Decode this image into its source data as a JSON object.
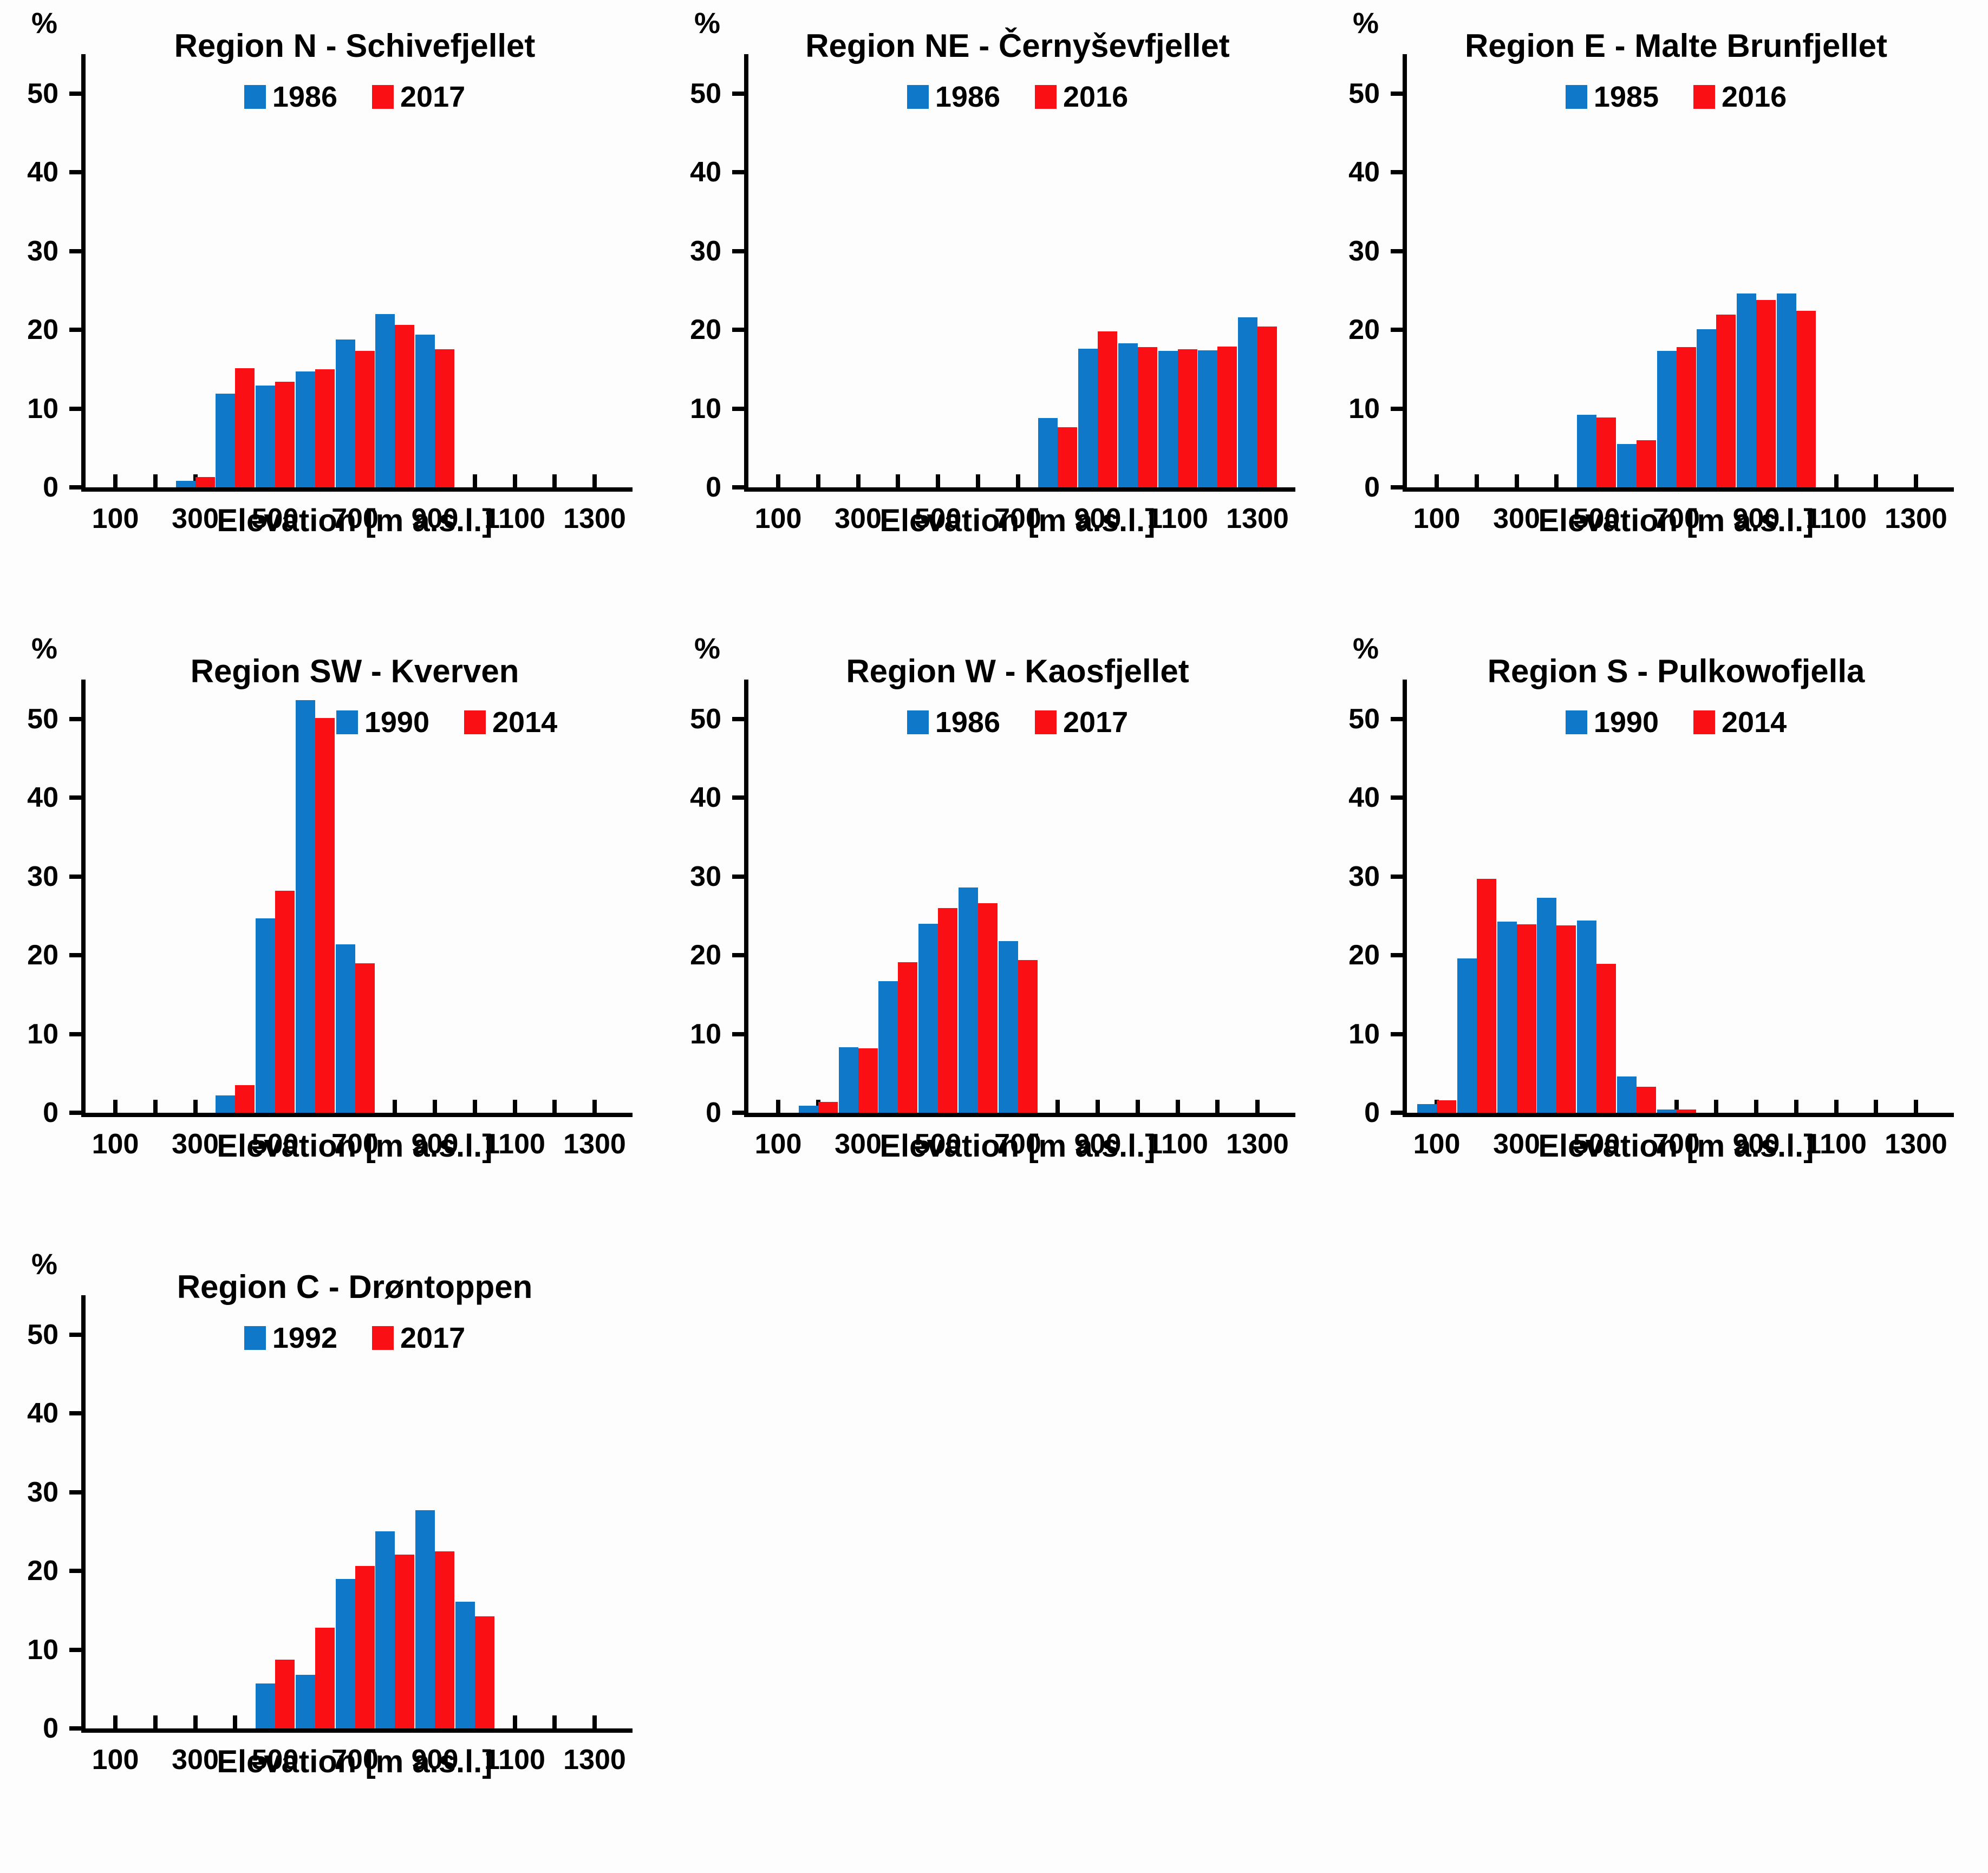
{
  "figure": {
    "description_unit": "%"
  },
  "colors": {
    "series1_blue": "#1078C8",
    "series2_red": "#FA1014",
    "axis": "#000000",
    "background": "#FDFDFE"
  },
  "y_axis": {
    "unit": "%",
    "ticks": [
      0,
      10,
      20,
      30,
      40,
      50
    ],
    "max": 55
  },
  "x_axis": {
    "label": "Elevation [m a.s.l.]",
    "tick_labels": [
      100,
      300,
      500,
      700,
      900,
      1100,
      1300
    ],
    "minor_tick_step": 100,
    "range": [
      100,
      1300
    ]
  },
  "chart_data": [
    {
      "type": "bar",
      "title": "Region N - Schivefjellet",
      "xlabel": "Elevation [m a.s.l.]",
      "ylabel": "%",
      "ylim": [
        0,
        55
      ],
      "legend_position": "top-center",
      "x": [
        300,
        400,
        500,
        600,
        700,
        800,
        900
      ],
      "series": [
        {
          "name": "1986",
          "values": [
            0.8,
            11.9,
            12.9,
            14.7,
            18.8,
            22.0,
            19.4
          ]
        },
        {
          "name": "2017",
          "values": [
            1.3,
            15.1,
            13.4,
            15.0,
            17.3,
            20.6,
            17.5
          ]
        }
      ]
    },
    {
      "type": "bar",
      "title": "Region NE - Černyševfjellet",
      "xlabel": "Elevation [m a.s.l.]",
      "ylabel": "%",
      "ylim": [
        0,
        55
      ],
      "legend_position": "top-center",
      "x": [
        800,
        900,
        1000,
        1100,
        1200,
        1300
      ],
      "series": [
        {
          "name": "1986",
          "values": [
            8.8,
            17.6,
            18.3,
            17.3,
            17.4,
            21.6
          ]
        },
        {
          "name": "2016",
          "values": [
            7.6,
            19.8,
            17.8,
            17.5,
            17.9,
            20.4
          ]
        }
      ]
    },
    {
      "type": "bar",
      "title": "Region E - Malte Brunfjellet",
      "xlabel": "Elevation [m a.s.l.]",
      "ylabel": "%",
      "ylim": [
        0,
        55
      ],
      "legend_position": "top-center",
      "x": [
        500,
        600,
        700,
        800,
        900,
        1000
      ],
      "series": [
        {
          "name": "1985",
          "values": [
            9.2,
            5.5,
            17.3,
            20.1,
            24.6,
            24.6
          ]
        },
        {
          "name": "2016",
          "values": [
            8.9,
            6.0,
            17.8,
            21.9,
            23.8,
            22.4
          ]
        }
      ]
    },
    {
      "type": "bar",
      "title": "Region SW - Kverven",
      "xlabel": "Elevation [m a.s.l.]",
      "ylabel": "%",
      "ylim": [
        0,
        55
      ],
      "legend_position": "top-right",
      "legend_shift": 170,
      "x": [
        400,
        500,
        600,
        700
      ],
      "series": [
        {
          "name": "1990",
          "values": [
            2.2,
            24.7,
            52.4,
            21.4
          ]
        },
        {
          "name": "2014",
          "values": [
            3.5,
            28.2,
            50.1,
            19.0
          ]
        }
      ]
    },
    {
      "type": "bar",
      "title": "Region W - Kaosfjellet",
      "xlabel": "Elevation [m a.s.l.]",
      "ylabel": "%",
      "ylim": [
        0,
        55
      ],
      "legend_position": "top-center",
      "x": [
        200,
        300,
        400,
        500,
        600,
        700
      ],
      "series": [
        {
          "name": "1986",
          "values": [
            0.9,
            8.3,
            16.7,
            24.0,
            28.6,
            21.8
          ]
        },
        {
          "name": "2017",
          "values": [
            1.4,
            8.2,
            19.1,
            26.0,
            26.6,
            19.4
          ]
        }
      ]
    },
    {
      "type": "bar",
      "title": "Region S - Pulkowofjella",
      "xlabel": "Elevation [m a.s.l.]",
      "ylabel": "%",
      "ylim": [
        0,
        55
      ],
      "legend_position": "top-center",
      "x": [
        100,
        200,
        300,
        400,
        500,
        600,
        700
      ],
      "series": [
        {
          "name": "1990",
          "values": [
            1.1,
            19.6,
            24.3,
            27.3,
            24.4,
            4.6,
            0.4
          ]
        },
        {
          "name": "2014",
          "values": [
            1.6,
            29.7,
            23.9,
            23.8,
            18.9,
            3.3,
            0.4
          ]
        }
      ]
    },
    {
      "type": "bar",
      "title": "Region C - Drøntoppen",
      "xlabel": "Elevation [m a.s.l.]",
      "ylabel": "%",
      "ylim": [
        0,
        55
      ],
      "legend_position": "top-center",
      "x": [
        500,
        600,
        700,
        800,
        900,
        1000
      ],
      "series": [
        {
          "name": "1992",
          "values": [
            5.7,
            6.8,
            19.0,
            25.0,
            27.7,
            16.1
          ]
        },
        {
          "name": "2017",
          "values": [
            8.7,
            12.8,
            20.6,
            22.1,
            22.5,
            14.2
          ]
        }
      ]
    }
  ]
}
